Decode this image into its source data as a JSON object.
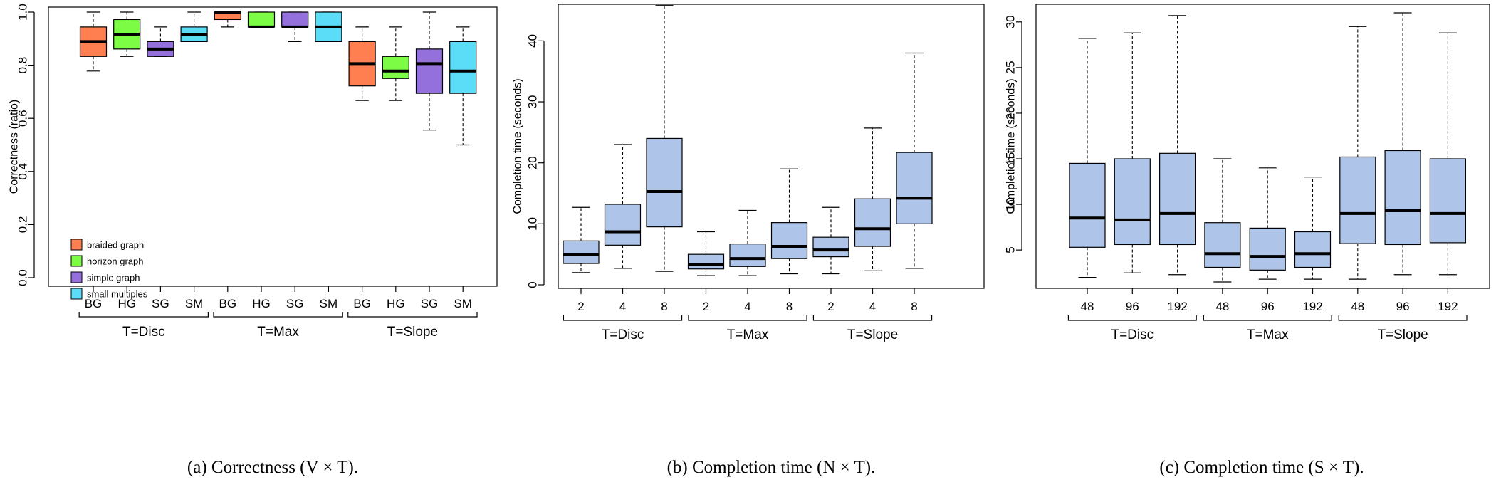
{
  "chart_data": [
    {
      "type": "boxplot",
      "caption": "(a)  Correctness (V × T).",
      "xlabel": "",
      "ylabel": "Correctness (ratio)",
      "ylim": [
        0,
        1
      ],
      "yticks": [
        "0.0",
        "0.2",
        "0.4",
        "0.6",
        "0.8",
        "1.0"
      ],
      "categories": [
        "BG",
        "HG",
        "SG",
        "SM",
        "BG",
        "HG",
        "SG",
        "SM",
        "BG",
        "HG",
        "SG",
        "SM"
      ],
      "groups": [
        {
          "label": "T=Disc",
          "span": [
            0,
            3
          ]
        },
        {
          "label": "T=Max",
          "span": [
            4,
            7
          ]
        },
        {
          "label": "T=Slope",
          "span": [
            8,
            11
          ]
        }
      ],
      "legend": {
        "position": "bottom-left",
        "entries": [
          {
            "label": "braided graph",
            "color": "#FF7F50"
          },
          {
            "label": "horizon graph",
            "color": "#7CFC44"
          },
          {
            "label": "simple graph",
            "color": "#9370DB"
          },
          {
            "label": "small multiples",
            "color": "#5BDDF8"
          }
        ]
      },
      "boxes": [
        {
          "min": 0.778,
          "q1": 0.833,
          "median": 0.889,
          "q3": 0.944,
          "max": 1.0,
          "color": "#FF7F50"
        },
        {
          "min": 0.833,
          "q1": 0.861,
          "median": 0.917,
          "q3": 0.972,
          "max": 1.0,
          "color": "#7CFC44"
        },
        {
          "min": 0.833,
          "q1": 0.833,
          "median": 0.861,
          "q3": 0.889,
          "max": 0.944,
          "color": "#9370DB"
        },
        {
          "min": 0.889,
          "q1": 0.889,
          "median": 0.917,
          "q3": 0.944,
          "max": 1.0,
          "color": "#5BDDF8"
        },
        {
          "min": 0.944,
          "q1": 0.972,
          "median": 1.0,
          "q3": 1.0,
          "max": 1.0,
          "color": "#FF7F50"
        },
        {
          "min": 0.944,
          "q1": 0.944,
          "median": 0.944,
          "q3": 1.0,
          "max": 1.0,
          "color": "#7CFC44"
        },
        {
          "min": 0.889,
          "q1": 0.944,
          "median": 0.944,
          "q3": 1.0,
          "max": 1.0,
          "color": "#9370DB"
        },
        {
          "min": 0.889,
          "q1": 0.889,
          "median": 0.944,
          "q3": 1.0,
          "max": 1.0,
          "color": "#5BDDF8"
        },
        {
          "min": 0.667,
          "q1": 0.722,
          "median": 0.806,
          "q3": 0.889,
          "max": 0.944,
          "color": "#FF7F50"
        },
        {
          "min": 0.667,
          "q1": 0.75,
          "median": 0.778,
          "q3": 0.833,
          "max": 0.944,
          "color": "#7CFC44"
        },
        {
          "min": 0.556,
          "q1": 0.694,
          "median": 0.806,
          "q3": 0.861,
          "max": 1.0,
          "color": "#9370DB"
        },
        {
          "min": 0.5,
          "q1": 0.694,
          "median": 0.778,
          "q3": 0.889,
          "max": 0.944,
          "color": "#5BDDF8"
        }
      ]
    },
    {
      "type": "boxplot",
      "caption": "(b)  Completion time (N × T).",
      "xlabel": "",
      "ylabel": "Completion time (seconds)",
      "ylim": [
        0,
        46
      ],
      "yticks": [
        "0",
        "10",
        "20",
        "30",
        "40"
      ],
      "categories": [
        "2",
        "4",
        "8",
        "2",
        "4",
        "8",
        "2",
        "4",
        "8"
      ],
      "groups": [
        {
          "label": "T=Disc",
          "span": [
            0,
            2
          ]
        },
        {
          "label": "T=Max",
          "span": [
            3,
            5
          ]
        },
        {
          "label": "T=Slope",
          "span": [
            6,
            8
          ]
        }
      ],
      "boxes": [
        {
          "min": 2.0,
          "q1": 3.5,
          "median": 4.9,
          "q3": 7.2,
          "max": 12.7,
          "color": "#AEC4E8"
        },
        {
          "min": 2.7,
          "q1": 6.5,
          "median": 8.7,
          "q3": 13.2,
          "max": 23.0,
          "color": "#AEC4E8"
        },
        {
          "min": 2.2,
          "q1": 9.5,
          "median": 15.3,
          "q3": 24.0,
          "max": 45.8,
          "color": "#AEC4E8"
        },
        {
          "min": 1.5,
          "q1": 2.6,
          "median": 3.3,
          "q3": 5.0,
          "max": 8.7,
          "color": "#AEC4E8"
        },
        {
          "min": 1.5,
          "q1": 3.0,
          "median": 4.3,
          "q3": 6.7,
          "max": 12.2,
          "color": "#AEC4E8"
        },
        {
          "min": 1.8,
          "q1": 4.3,
          "median": 6.3,
          "q3": 10.2,
          "max": 19.0,
          "color": "#AEC4E8"
        },
        {
          "min": 1.8,
          "q1": 4.6,
          "median": 5.7,
          "q3": 7.8,
          "max": 12.7,
          "color": "#AEC4E8"
        },
        {
          "min": 2.3,
          "q1": 6.3,
          "median": 9.2,
          "q3": 14.1,
          "max": 25.7,
          "color": "#AEC4E8"
        },
        {
          "min": 2.7,
          "q1": 10.0,
          "median": 14.2,
          "q3": 21.7,
          "max": 38.0,
          "color": "#AEC4E8"
        }
      ]
    },
    {
      "type": "boxplot",
      "caption": "(c)  Completion time (S × T).",
      "xlabel": "",
      "ylabel": "Completion time (seconds)",
      "ylim": [
        1.5,
        31
      ],
      "yticks": [
        "5",
        "10",
        "15",
        "20",
        "25",
        "30"
      ],
      "categories": [
        "48",
        "96",
        "192",
        "48",
        "96",
        "192",
        "48",
        "96",
        "192"
      ],
      "groups": [
        {
          "label": "T=Disc",
          "span": [
            0,
            2
          ]
        },
        {
          "label": "T=Max",
          "span": [
            3,
            5
          ]
        },
        {
          "label": "T=Slope",
          "span": [
            6,
            8
          ]
        }
      ],
      "boxes": [
        {
          "min": 2.0,
          "q1": 5.3,
          "median": 8.5,
          "q3": 14.5,
          "max": 28.2,
          "color": "#AEC4E8"
        },
        {
          "min": 2.5,
          "q1": 5.6,
          "median": 8.3,
          "q3": 15.0,
          "max": 28.8,
          "color": "#AEC4E8"
        },
        {
          "min": 2.3,
          "q1": 5.6,
          "median": 9.0,
          "q3": 15.6,
          "max": 30.7,
          "color": "#AEC4E8"
        },
        {
          "min": 1.5,
          "q1": 3.1,
          "median": 4.6,
          "q3": 8.0,
          "max": 15.0,
          "color": "#AEC4E8"
        },
        {
          "min": 1.8,
          "q1": 2.8,
          "median": 4.3,
          "q3": 7.4,
          "max": 14.0,
          "color": "#AEC4E8"
        },
        {
          "min": 1.8,
          "q1": 3.1,
          "median": 4.6,
          "q3": 7.0,
          "max": 13.0,
          "color": "#AEC4E8"
        },
        {
          "min": 1.8,
          "q1": 5.7,
          "median": 9.0,
          "q3": 15.2,
          "max": 29.5,
          "color": "#AEC4E8"
        },
        {
          "min": 2.3,
          "q1": 5.6,
          "median": 9.3,
          "q3": 15.9,
          "max": 31.0,
          "color": "#AEC4E8"
        },
        {
          "min": 2.3,
          "q1": 5.8,
          "median": 9.0,
          "q3": 15.0,
          "max": 28.8,
          "color": "#AEC4E8"
        }
      ]
    }
  ]
}
